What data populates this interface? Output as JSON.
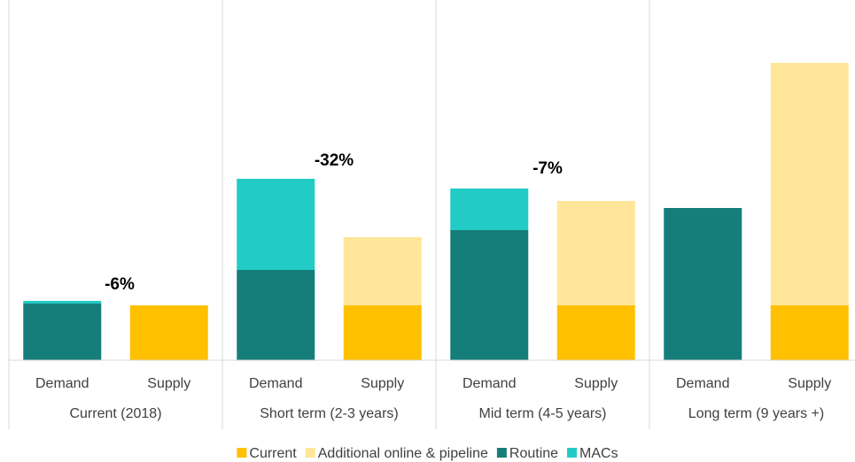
{
  "chart_data": {
    "type": "stacked-bar",
    "categories": [
      "Demand",
      "Supply",
      "Demand",
      "Supply",
      "Demand",
      "Supply",
      "Demand",
      "Supply"
    ],
    "groups": [
      "Current (2018)",
      "Short term (2-3 years)",
      "Mid term (4-5 years)",
      "Long term (9 years +)"
    ],
    "series": [
      {
        "name": "Current",
        "color": "#ffc000",
        "values": [
          null,
          62,
          null,
          62,
          null,
          62,
          null,
          62
        ]
      },
      {
        "name": "Additional online & pipeline",
        "color": "#ffe699",
        "values": [
          null,
          null,
          null,
          77,
          null,
          118,
          null,
          274
        ]
      },
      {
        "name": "Routine",
        "color": "#167e7a",
        "values": [
          64,
          null,
          102,
          null,
          147,
          null,
          172,
          null
        ]
      },
      {
        "name": "MACs",
        "color": "#23cbc6",
        "values": [
          3,
          null,
          103,
          null,
          47,
          null,
          null,
          null
        ]
      }
    ],
    "annotations": [
      "-6%",
      "-32%",
      "-7%"
    ],
    "ylim": [
      0,
      400
    ]
  }
}
